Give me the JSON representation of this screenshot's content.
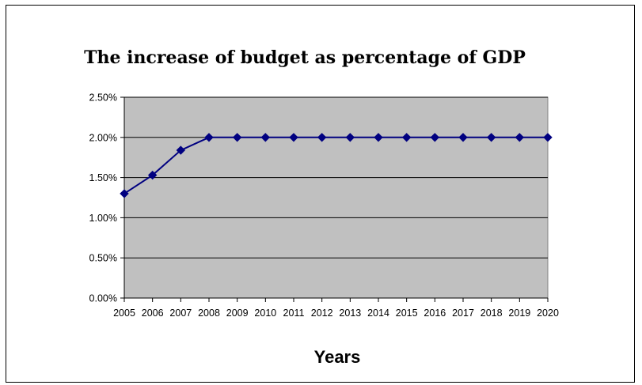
{
  "chart_data": {
    "type": "line",
    "title": "The increase of budget as percentage of GDP",
    "xlabel": "Years",
    "ylabel": "",
    "categories": [
      "2005",
      "2006",
      "2007",
      "2008",
      "2009",
      "2010",
      "2011",
      "2012",
      "2013",
      "2014",
      "2015",
      "2016",
      "2017",
      "2018",
      "2019",
      "2020"
    ],
    "series": [
      {
        "values": [
          0.013,
          0.0153,
          0.0184,
          0.02,
          0.02,
          0.02,
          0.02,
          0.02,
          0.02,
          0.02,
          0.02,
          0.02,
          0.02,
          0.02,
          0.02,
          0.02
        ]
      }
    ],
    "yticks": [
      "0.00%",
      "0.50%",
      "1.00%",
      "1.50%",
      "2.00%",
      "2.50%"
    ],
    "ylim": [
      0,
      0.025
    ],
    "grid": true,
    "legend": "none",
    "colors": {
      "plot_background": "#c0c0c0",
      "line": "#000080",
      "gridline": "#000000"
    }
  }
}
